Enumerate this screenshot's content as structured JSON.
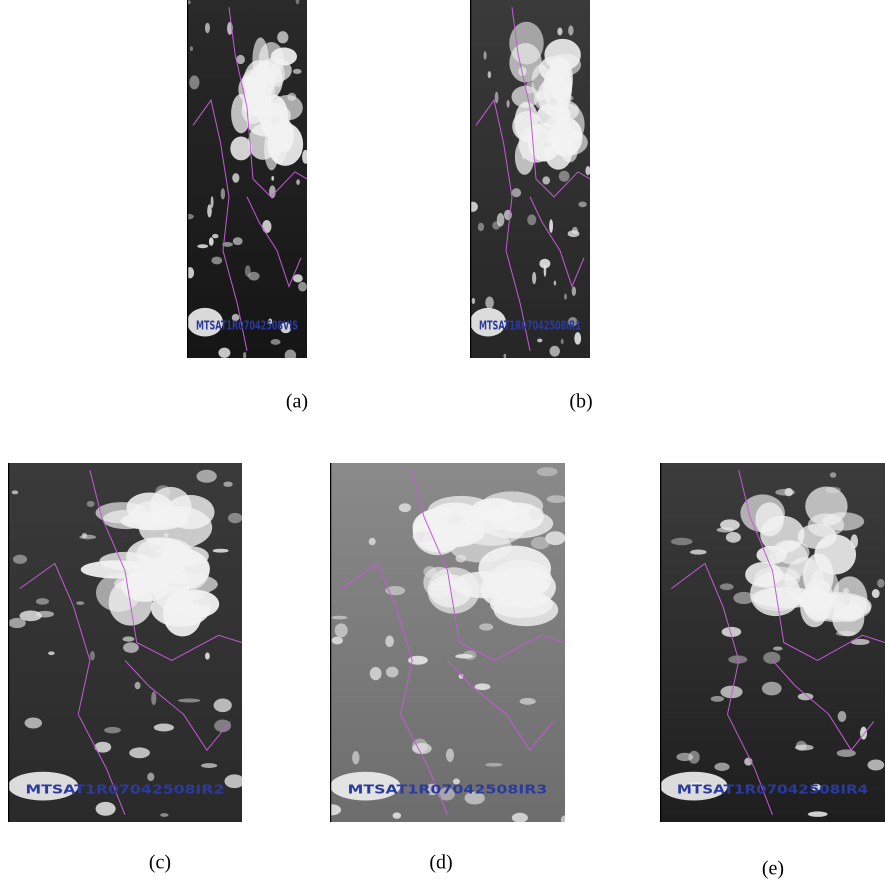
{
  "panels": [
    {
      "label": "MTSAT1R07042508VIS",
      "caption": "(a)"
    },
    {
      "label": "MTSAT1R07042508IR1",
      "caption": "(b)"
    },
    {
      "label": "MTSAT1R07042508IR2",
      "caption": "(c)"
    },
    {
      "label": "MTSAT1R07042508IR3",
      "caption": "(d)"
    },
    {
      "label": "MTSAT1R07042508IR4",
      "caption": "(e)"
    }
  ]
}
